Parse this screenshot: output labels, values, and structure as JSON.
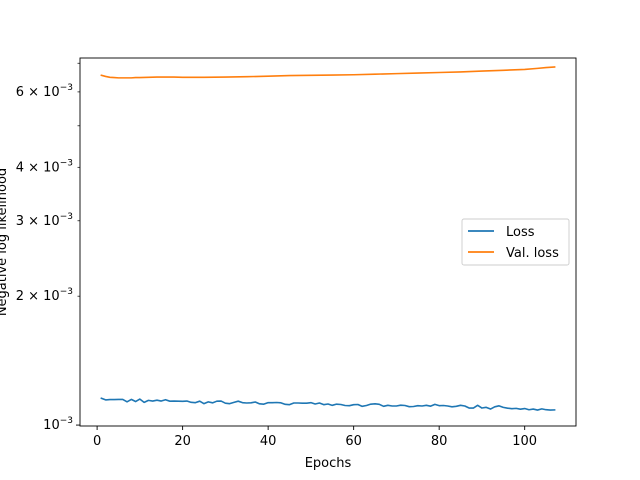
{
  "chart_data": {
    "type": "line",
    "title": "",
    "xlabel": "Epochs",
    "ylabel": "Negative log likelihood",
    "xlim": [
      -4,
      112
    ],
    "ylim": [
      0.000995,
      0.0072
    ],
    "yscale": "log",
    "grid": false,
    "legend_position": "center-right",
    "x_ticks": [
      0,
      20,
      40,
      60,
      80,
      100
    ],
    "x_tick_labels": [
      "0",
      "20",
      "40",
      "60",
      "80",
      "100"
    ],
    "y_major_ticks": [
      {
        "value": 0.001,
        "mantissa": "10",
        "exponent": "−3"
      }
    ],
    "y_minor_ticks": [
      {
        "value": 0.002,
        "mantissa": "2 × 10",
        "exponent": "−3"
      },
      {
        "value": 0.003,
        "mantissa": "3 × 10",
        "exponent": "−3"
      },
      {
        "value": 0.004,
        "mantissa": "4 × 10",
        "exponent": "−3"
      },
      {
        "value": 0.006,
        "mantissa": "6 × 10",
        "exponent": "−3"
      }
    ],
    "y_unlabeled_minor_ticks": [
      0.005,
      0.007
    ],
    "series": [
      {
        "name": "Loss",
        "color": "#1f77b4",
        "x": [
          1,
          2,
          3,
          4,
          5,
          6,
          7,
          8,
          9,
          10,
          11,
          12,
          13,
          14,
          15,
          16,
          17,
          18,
          19,
          20,
          21,
          22,
          23,
          24,
          25,
          26,
          27,
          28,
          29,
          30,
          31,
          32,
          33,
          34,
          35,
          36,
          37,
          38,
          39,
          40,
          41,
          42,
          43,
          44,
          45,
          46,
          47,
          48,
          49,
          50,
          51,
          52,
          53,
          54,
          55,
          56,
          57,
          58,
          59,
          60,
          61,
          62,
          63,
          64,
          65,
          66,
          67,
          68,
          69,
          70,
          71,
          72,
          73,
          74,
          75,
          76,
          77,
          78,
          79,
          80,
          81,
          82,
          83,
          84,
          85,
          86,
          87,
          88,
          89,
          90,
          91,
          92,
          93,
          94,
          95,
          96,
          97,
          98,
          99,
          100,
          101,
          102,
          103,
          104,
          105,
          106,
          107
        ],
        "values": [
          0.001155,
          0.001145,
          0.001147,
          0.001147,
          0.001148,
          0.001148,
          0.001133,
          0.001148,
          0.001135,
          0.00115,
          0.00113,
          0.001142,
          0.001138,
          0.001143,
          0.001138,
          0.001146,
          0.001137,
          0.001138,
          0.001137,
          0.001136,
          0.001138,
          0.00113,
          0.001128,
          0.001137,
          0.001122,
          0.001133,
          0.001127,
          0.001137,
          0.001138,
          0.001125,
          0.001122,
          0.00113,
          0.001137,
          0.001128,
          0.001126,
          0.001127,
          0.001132,
          0.001121,
          0.001119,
          0.001128,
          0.001128,
          0.001129,
          0.001127,
          0.001118,
          0.001116,
          0.001126,
          0.001126,
          0.001125,
          0.001125,
          0.001128,
          0.00112,
          0.001126,
          0.001116,
          0.00112,
          0.001112,
          0.001119,
          0.001117,
          0.001111,
          0.00111,
          0.001116,
          0.001117,
          0.001106,
          0.001111,
          0.001119,
          0.001121,
          0.001118,
          0.001106,
          0.001112,
          0.001108,
          0.001108,
          0.001113,
          0.001111,
          0.001104,
          0.001105,
          0.00111,
          0.001108,
          0.001112,
          0.001107,
          0.001118,
          0.00111,
          0.001111,
          0.001108,
          0.001103,
          0.001106,
          0.001112,
          0.001108,
          0.001096,
          0.001096,
          0.001112,
          0.001096,
          0.0011,
          0.00109,
          0.001103,
          0.001109,
          0.0011,
          0.001095,
          0.001092,
          0.001094,
          0.001089,
          0.001093,
          0.001086,
          0.00109,
          0.001084,
          0.001091,
          0.001086,
          0.001084,
          0.001085
        ]
      },
      {
        "name": "Val. loss",
        "color": "#ff7f0e",
        "x": [
          1,
          2,
          3,
          4,
          5,
          6,
          7,
          8,
          9,
          10,
          12,
          14,
          16,
          18,
          20,
          25,
          30,
          35,
          40,
          45,
          50,
          55,
          60,
          65,
          70,
          75,
          80,
          85,
          90,
          95,
          100,
          103,
          105,
          107
        ],
        "values": [
          0.00656,
          0.00652,
          0.00649,
          0.00648,
          0.00647,
          0.00647,
          0.00647,
          0.00647,
          0.00648,
          0.00648,
          0.00649,
          0.0065,
          0.0065,
          0.0065,
          0.00649,
          0.00649,
          0.0065,
          0.00651,
          0.00653,
          0.00655,
          0.00656,
          0.00657,
          0.00658,
          0.0066,
          0.00662,
          0.00664,
          0.00666,
          0.00668,
          0.00671,
          0.00674,
          0.00677,
          0.00681,
          0.00684,
          0.00686
        ]
      }
    ]
  }
}
